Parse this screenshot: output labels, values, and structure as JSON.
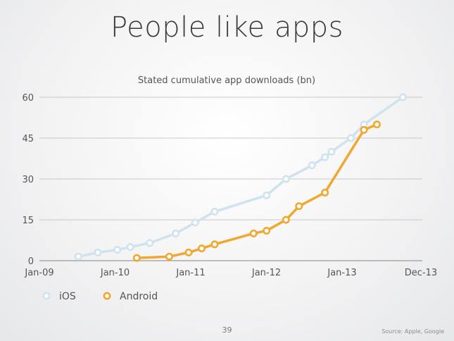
{
  "title": "People like apps",
  "page_number": "39",
  "source": "Source: Apple, Google",
  "chart_data": {
    "type": "line",
    "title": "Stated cumulative app downloads (bn)",
    "xlabel": "",
    "ylabel": "",
    "ylim": [
      0,
      60
    ],
    "y_ticks": [
      "0",
      "15",
      "30",
      "45",
      "60"
    ],
    "x_range": [
      "2009-01",
      "2013-12"
    ],
    "x_tick_labels": [
      "Jan-09",
      "Jan-10",
      "Jan-11",
      "Jan-12",
      "Jan-13",
      "Dec-13"
    ],
    "grid": true,
    "legend_position": "bottom-left",
    "series": [
      {
        "name": "iOS",
        "color": "#cfe3ee",
        "points": [
          {
            "x": "2009-07",
            "y": 1.5
          },
          {
            "x": "2009-10",
            "y": 3
          },
          {
            "x": "2010-01",
            "y": 4
          },
          {
            "x": "2010-03",
            "y": 5
          },
          {
            "x": "2010-06",
            "y": 6.5
          },
          {
            "x": "2010-10",
            "y": 10
          },
          {
            "x": "2011-01",
            "y": 14
          },
          {
            "x": "2011-04",
            "y": 18
          },
          {
            "x": "2011-12",
            "y": 24
          },
          {
            "x": "2012-03",
            "y": 30
          },
          {
            "x": "2012-07",
            "y": 35
          },
          {
            "x": "2012-09",
            "y": 38
          },
          {
            "x": "2012-10",
            "y": 40
          },
          {
            "x": "2013-01",
            "y": 45
          },
          {
            "x": "2013-03",
            "y": 50
          },
          {
            "x": "2013-09",
            "y": 60
          }
        ]
      },
      {
        "name": "Android",
        "color": "#f0a830",
        "points": [
          {
            "x": "2010-04",
            "y": 1
          },
          {
            "x": "2010-09",
            "y": 1.5
          },
          {
            "x": "2010-12",
            "y": 3
          },
          {
            "x": "2011-02",
            "y": 4.5
          },
          {
            "x": "2011-04",
            "y": 6
          },
          {
            "x": "2011-10",
            "y": 10
          },
          {
            "x": "2011-12",
            "y": 11
          },
          {
            "x": "2012-03",
            "y": 15
          },
          {
            "x": "2012-05",
            "y": 20
          },
          {
            "x": "2012-09",
            "y": 25
          },
          {
            "x": "2013-03",
            "y": 48
          },
          {
            "x": "2013-05",
            "y": 50
          }
        ]
      }
    ]
  }
}
